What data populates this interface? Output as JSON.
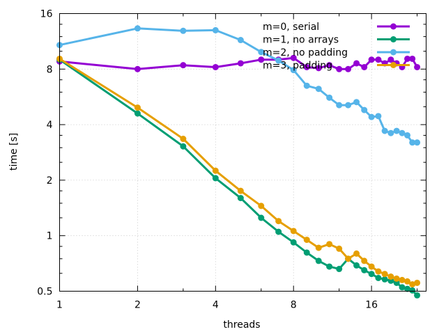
{
  "chart_data": {
    "type": "line",
    "title": "",
    "xlabel": "threads",
    "ylabel": "time [s]",
    "xscale": "log2",
    "yscale": "log2",
    "xlim": [
      1,
      26
    ],
    "ylim": [
      0.5,
      16
    ],
    "xticks": [
      1,
      2,
      4,
      8,
      16
    ],
    "xtick_labels": [
      "1",
      "2",
      "4",
      "8",
      "16"
    ],
    "yticks": [
      0.5,
      1,
      2,
      4,
      8,
      16
    ],
    "ytick_labels": [
      "0.5",
      "1",
      "2",
      "4",
      "8",
      "16"
    ],
    "grid": true,
    "legend_position": "top-right",
    "series": [
      {
        "name": "m=0, serial",
        "color": "#9400d3",
        "x": [
          1,
          2,
          3,
          4,
          5,
          6,
          7,
          8,
          9,
          10,
          11,
          12,
          13,
          14,
          15,
          16,
          17,
          18,
          19,
          20,
          21,
          22,
          23,
          24
        ],
        "y": [
          8.8,
          8.0,
          8.4,
          8.2,
          8.6,
          9.0,
          9.0,
          9.2,
          8.2,
          8.1,
          8.4,
          8.0,
          8.0,
          8.6,
          8.2,
          9.0,
          9.0,
          8.6,
          9.0,
          8.6,
          8.2,
          9.1,
          9.1,
          8.2
        ]
      },
      {
        "name": "m=1, no arrays",
        "color": "#009e73",
        "x": [
          1,
          2,
          3,
          4,
          5,
          6,
          7,
          8,
          9,
          10,
          11,
          12,
          13,
          14,
          15,
          16,
          17,
          18,
          19,
          20,
          21,
          22,
          23,
          24
        ],
        "y": [
          9.0,
          4.6,
          3.05,
          2.05,
          1.6,
          1.25,
          1.05,
          0.92,
          0.81,
          0.73,
          0.68,
          0.66,
          0.75,
          0.69,
          0.65,
          0.62,
          0.59,
          0.58,
          0.57,
          0.555,
          0.525,
          0.515,
          0.505,
          0.475
        ]
      },
      {
        "name": "m=2, no padding",
        "color": "#56b4e9",
        "x": [
          1,
          2,
          3,
          4,
          5,
          6,
          7,
          8,
          9,
          10,
          11,
          12,
          13,
          14,
          15,
          16,
          17,
          18,
          19,
          20,
          21,
          22,
          23,
          24
        ],
        "y": [
          10.8,
          13.3,
          12.9,
          13.0,
          11.5,
          9.9,
          8.9,
          7.9,
          6.5,
          6.25,
          5.6,
          5.1,
          5.1,
          5.3,
          4.8,
          4.4,
          4.45,
          3.7,
          3.6,
          3.7,
          3.6,
          3.5,
          3.2,
          3.2
        ]
      },
      {
        "name": "m=3, padding",
        "color": "#e69f00",
        "x": [
          1,
          2,
          3,
          4,
          5,
          6,
          7,
          8,
          9,
          10,
          11,
          12,
          13,
          14,
          15,
          16,
          17,
          18,
          19,
          20,
          21,
          22,
          23,
          24
        ],
        "y": [
          9.1,
          4.95,
          3.35,
          2.25,
          1.75,
          1.45,
          1.2,
          1.06,
          0.95,
          0.86,
          0.9,
          0.85,
          0.75,
          0.8,
          0.73,
          0.68,
          0.64,
          0.62,
          0.6,
          0.585,
          0.575,
          0.565,
          0.545,
          0.555
        ]
      }
    ]
  }
}
